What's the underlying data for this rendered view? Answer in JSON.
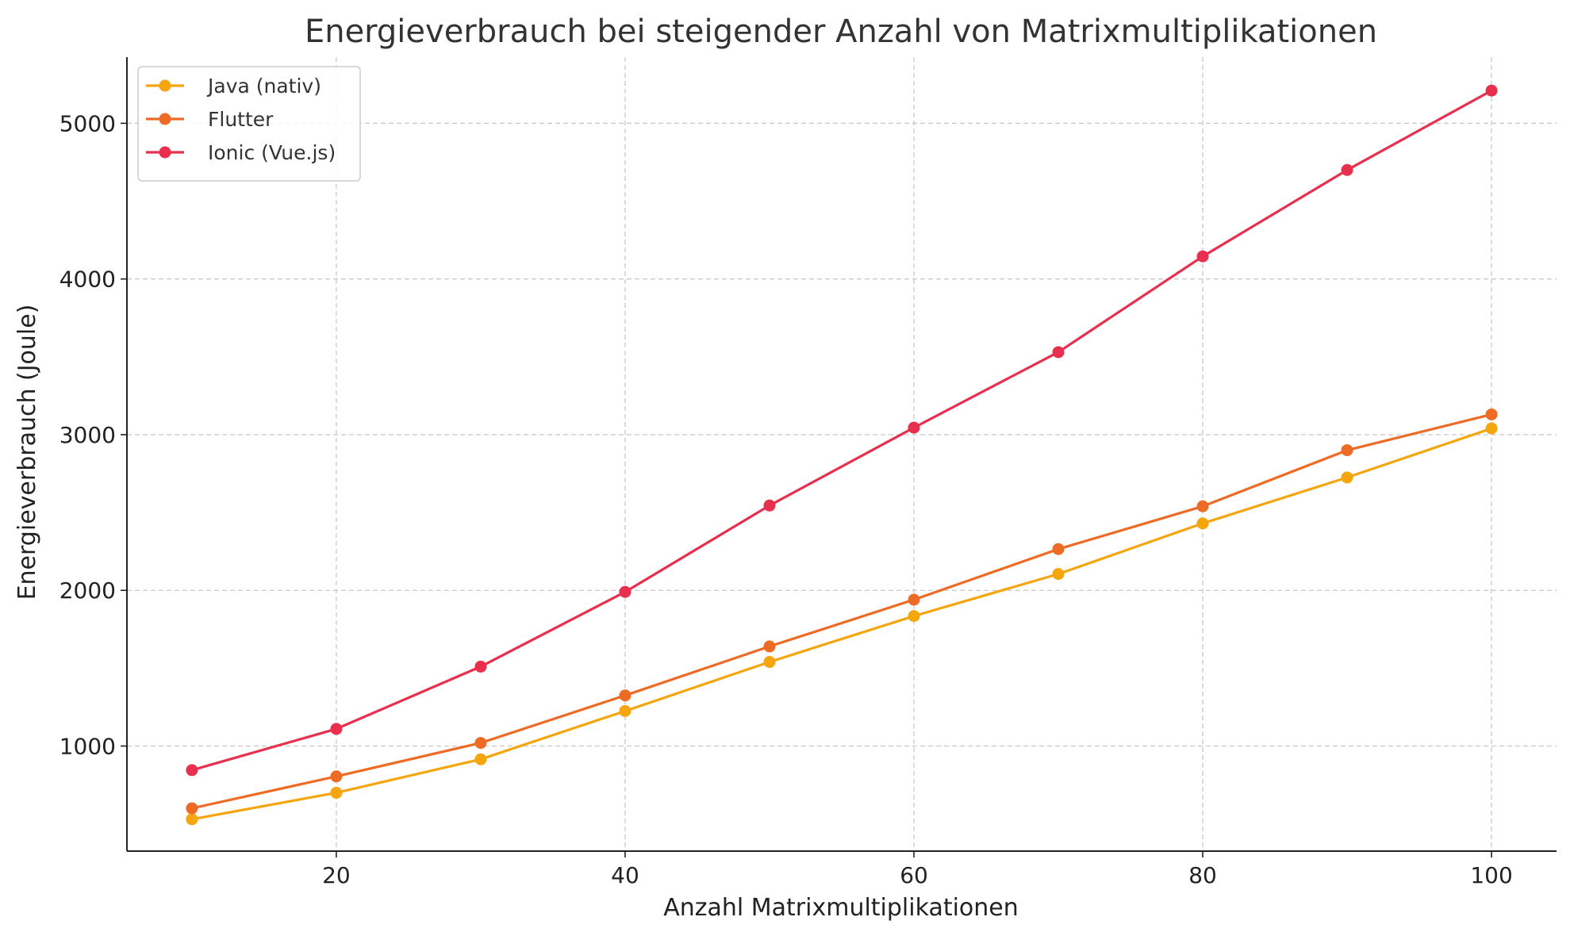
{
  "chart_data": {
    "type": "line",
    "title": "Energieverbrauch bei steigender Anzahl von Matrixmultiplikationen",
    "xlabel": "Anzahl Matrixmultiplikationen",
    "ylabel": "Energieverbrauch (Joule)",
    "x": [
      10,
      20,
      30,
      40,
      50,
      60,
      70,
      80,
      90,
      100
    ],
    "xlim": [
      5.5,
      104.5
    ],
    "ylim": [
      325,
      5425
    ],
    "xticks": [
      20,
      40,
      60,
      80,
      100
    ],
    "yticks": [
      1000,
      2000,
      3000,
      4000,
      5000
    ],
    "grid": true,
    "legend_position": "top-left",
    "series": [
      {
        "name": "Java (nativ)",
        "color": "#F5A50D",
        "values": [
          530,
          700,
          915,
          1225,
          1540,
          1835,
          2105,
          2430,
          2725,
          3040
        ]
      },
      {
        "name": "Flutter",
        "color": "#EE6B26",
        "values": [
          600,
          805,
          1020,
          1325,
          1640,
          1940,
          2265,
          2540,
          2900,
          3130
        ]
      },
      {
        "name": "Ionic (Vue.js)",
        "color": "#E8304E",
        "values": [
          845,
          1110,
          1510,
          1990,
          2545,
          3045,
          3530,
          4145,
          4700,
          5210
        ]
      }
    ]
  }
}
